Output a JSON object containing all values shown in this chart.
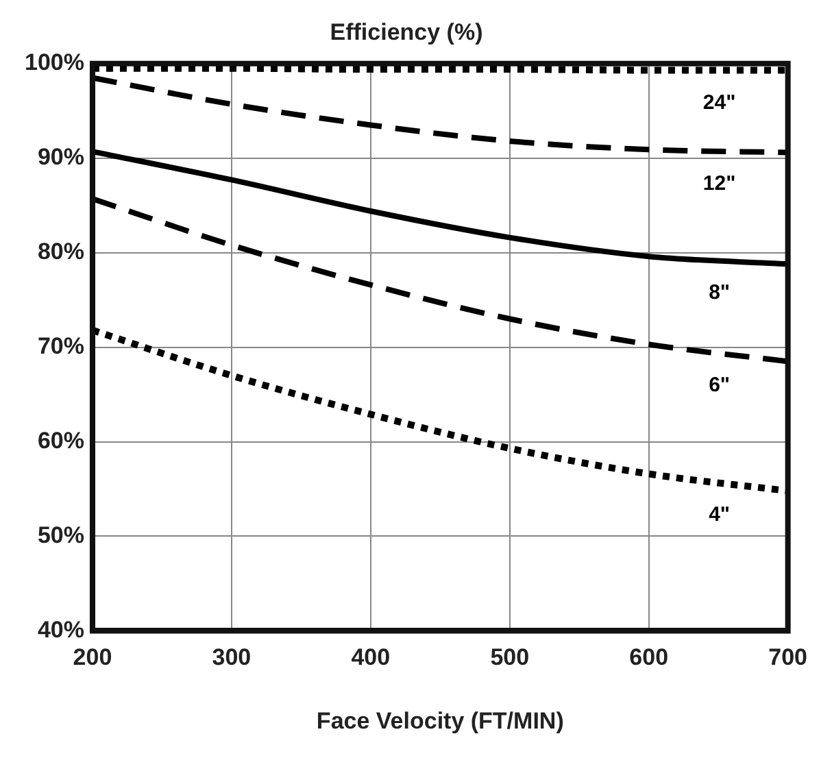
{
  "chart_data": {
    "type": "line",
    "title": "Efficiency (%)",
    "xlabel": "Face Velocity (FT/MIN)",
    "x": [
      200,
      300,
      400,
      500,
      600,
      700
    ],
    "series": [
      {
        "name": "24\"",
        "color": "#000000",
        "line_style": "dotted",
        "values": [
          99.5,
          99.5,
          99.4,
          99.4,
          99.3,
          99.3
        ]
      },
      {
        "name": "12\"",
        "color": "#000000",
        "line_style": "dashed",
        "values": [
          98.5,
          95.7,
          93.5,
          91.8,
          90.9,
          90.6
        ]
      },
      {
        "name": "8\"",
        "color": "#000000",
        "line_style": "solid",
        "values": [
          90.7,
          87.7,
          84.4,
          81.6,
          79.6,
          78.8
        ]
      },
      {
        "name": "6\"",
        "color": "#000000",
        "line_style": "dashed",
        "values": [
          85.7,
          80.8,
          76.6,
          73.0,
          70.3,
          68.5
        ]
      },
      {
        "name": "4\"",
        "color": "#000000",
        "line_style": "dotted",
        "values": [
          71.8,
          67.0,
          62.9,
          59.3,
          56.6,
          54.8
        ]
      }
    ],
    "xlim": [
      200,
      700
    ],
    "xticks": [
      200,
      300,
      400,
      500,
      600,
      700
    ],
    "ylim": [
      40,
      100
    ],
    "yticks": [
      {
        "value": 40,
        "label": "40%"
      },
      {
        "value": 50,
        "label": "50%"
      },
      {
        "value": 60,
        "label": "60%"
      },
      {
        "value": 70,
        "label": "70%"
      },
      {
        "value": 80,
        "label": "80%"
      },
      {
        "value": 90,
        "label": "90%"
      },
      {
        "value": 100,
        "label": "100%"
      }
    ],
    "grid": true,
    "legend": false,
    "marker": "none"
  }
}
